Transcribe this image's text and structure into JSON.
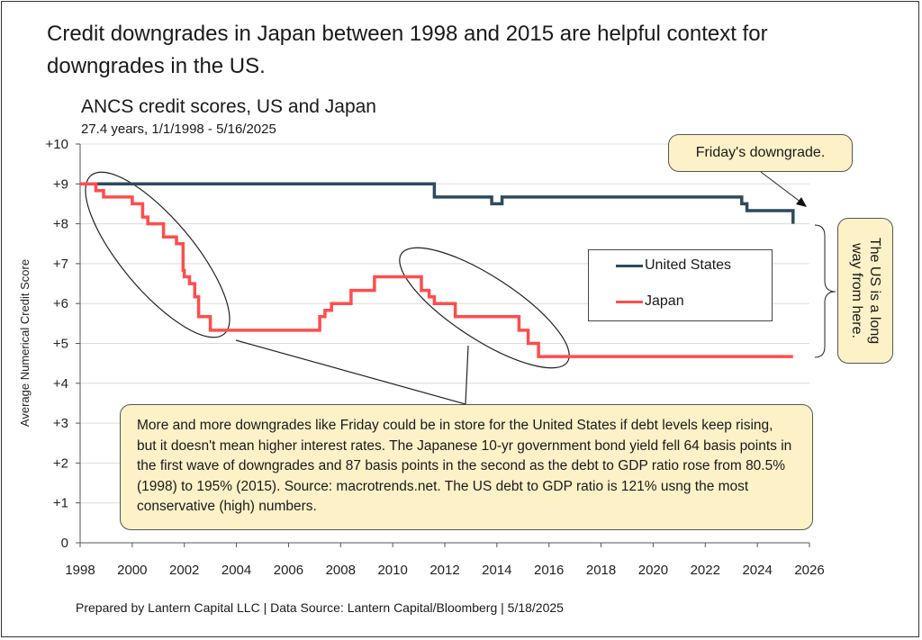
{
  "headline": "Credit downgrades in Japan between 1998 and 2015 are helpful context for downgrades in the US.",
  "footer": "Prepared by Lantern Capital LLC | Data Source: Lantern Capital/Bloomberg | 5/18/2025",
  "annotations": {
    "friday": "Friday's downgrade.",
    "far": "The US is a long way from here.",
    "note": "More and more downgrades like Friday could be in store for the United States if debt levels keep rising, but it doesn't mean higher interest rates. The Japanese 10-yr government bond yield fell 64 basis points in the first wave of downgrades and 87 basis points in the second as the debt to GDP ratio rose from 80.5% (1998) to 195% (2015). Source: macrotrends.net. The US debt to GDP ratio is 121% usng the most conservative (high) numbers."
  },
  "chart_data": {
    "type": "line",
    "step": true,
    "title": "ANCS credit scores, US and Japan",
    "subtitle": "27.4 years, 1/1/1998 - 5/16/2025",
    "xlabel": "",
    "ylabel": "Average Numerical Credit Score",
    "xlim": [
      1998,
      2026
    ],
    "ylim": [
      0,
      10
    ],
    "xticks": [
      "1998",
      "2000",
      "2002",
      "2004",
      "2006",
      "2008",
      "2010",
      "2012",
      "2014",
      "2016",
      "2018",
      "2020",
      "2022",
      "2024",
      "2026"
    ],
    "yticks": [
      "0",
      "+1",
      "+2",
      "+3",
      "+4",
      "+5",
      "+6",
      "+7",
      "+8",
      "+9",
      "+10"
    ],
    "grid": true,
    "legend": "center-right",
    "series": [
      {
        "name": "United States",
        "color": "#2e4a5e",
        "points": [
          [
            1998.0,
            9.0
          ],
          [
            2011.6,
            9.0
          ],
          [
            2011.6,
            8.67
          ],
          [
            2013.8,
            8.67
          ],
          [
            2013.8,
            8.5
          ],
          [
            2014.2,
            8.5
          ],
          [
            2014.2,
            8.67
          ],
          [
            2023.4,
            8.67
          ],
          [
            2023.4,
            8.5
          ],
          [
            2023.6,
            8.5
          ],
          [
            2023.6,
            8.33
          ],
          [
            2025.37,
            8.33
          ],
          [
            2025.37,
            8.0
          ]
        ]
      },
      {
        "name": "Japan",
        "color": "#ff4d4d",
        "points": [
          [
            1998.0,
            9.0
          ],
          [
            1998.6,
            9.0
          ],
          [
            1998.6,
            8.83
          ],
          [
            1998.9,
            8.83
          ],
          [
            1998.9,
            8.67
          ],
          [
            2000.0,
            8.67
          ],
          [
            2000.0,
            8.5
          ],
          [
            2000.4,
            8.5
          ],
          [
            2000.4,
            8.17
          ],
          [
            2000.6,
            8.17
          ],
          [
            2000.6,
            8.0
          ],
          [
            2001.2,
            8.0
          ],
          [
            2001.2,
            7.67
          ],
          [
            2001.7,
            7.67
          ],
          [
            2001.7,
            7.5
          ],
          [
            2001.95,
            7.5
          ],
          [
            2001.95,
            6.83
          ],
          [
            2002.0,
            6.83
          ],
          [
            2002.0,
            6.67
          ],
          [
            2002.2,
            6.67
          ],
          [
            2002.2,
            6.5
          ],
          [
            2002.4,
            6.5
          ],
          [
            2002.4,
            6.17
          ],
          [
            2002.55,
            6.17
          ],
          [
            2002.55,
            5.67
          ],
          [
            2003.0,
            5.67
          ],
          [
            2003.0,
            5.33
          ],
          [
            2007.2,
            5.33
          ],
          [
            2007.2,
            5.67
          ],
          [
            2007.4,
            5.67
          ],
          [
            2007.4,
            5.83
          ],
          [
            2007.65,
            5.83
          ],
          [
            2007.65,
            6.0
          ],
          [
            2008.4,
            6.0
          ],
          [
            2008.4,
            6.33
          ],
          [
            2009.3,
            6.33
          ],
          [
            2009.3,
            6.67
          ],
          [
            2011.1,
            6.67
          ],
          [
            2011.1,
            6.33
          ],
          [
            2011.4,
            6.33
          ],
          [
            2011.4,
            6.17
          ],
          [
            2011.6,
            6.17
          ],
          [
            2011.6,
            6.0
          ],
          [
            2012.4,
            6.0
          ],
          [
            2012.4,
            5.67
          ],
          [
            2014.85,
            5.67
          ],
          [
            2014.85,
            5.33
          ],
          [
            2015.2,
            5.33
          ],
          [
            2015.2,
            5.0
          ],
          [
            2015.6,
            5.0
          ],
          [
            2015.6,
            4.67
          ],
          [
            2025.37,
            4.67
          ]
        ]
      }
    ]
  }
}
